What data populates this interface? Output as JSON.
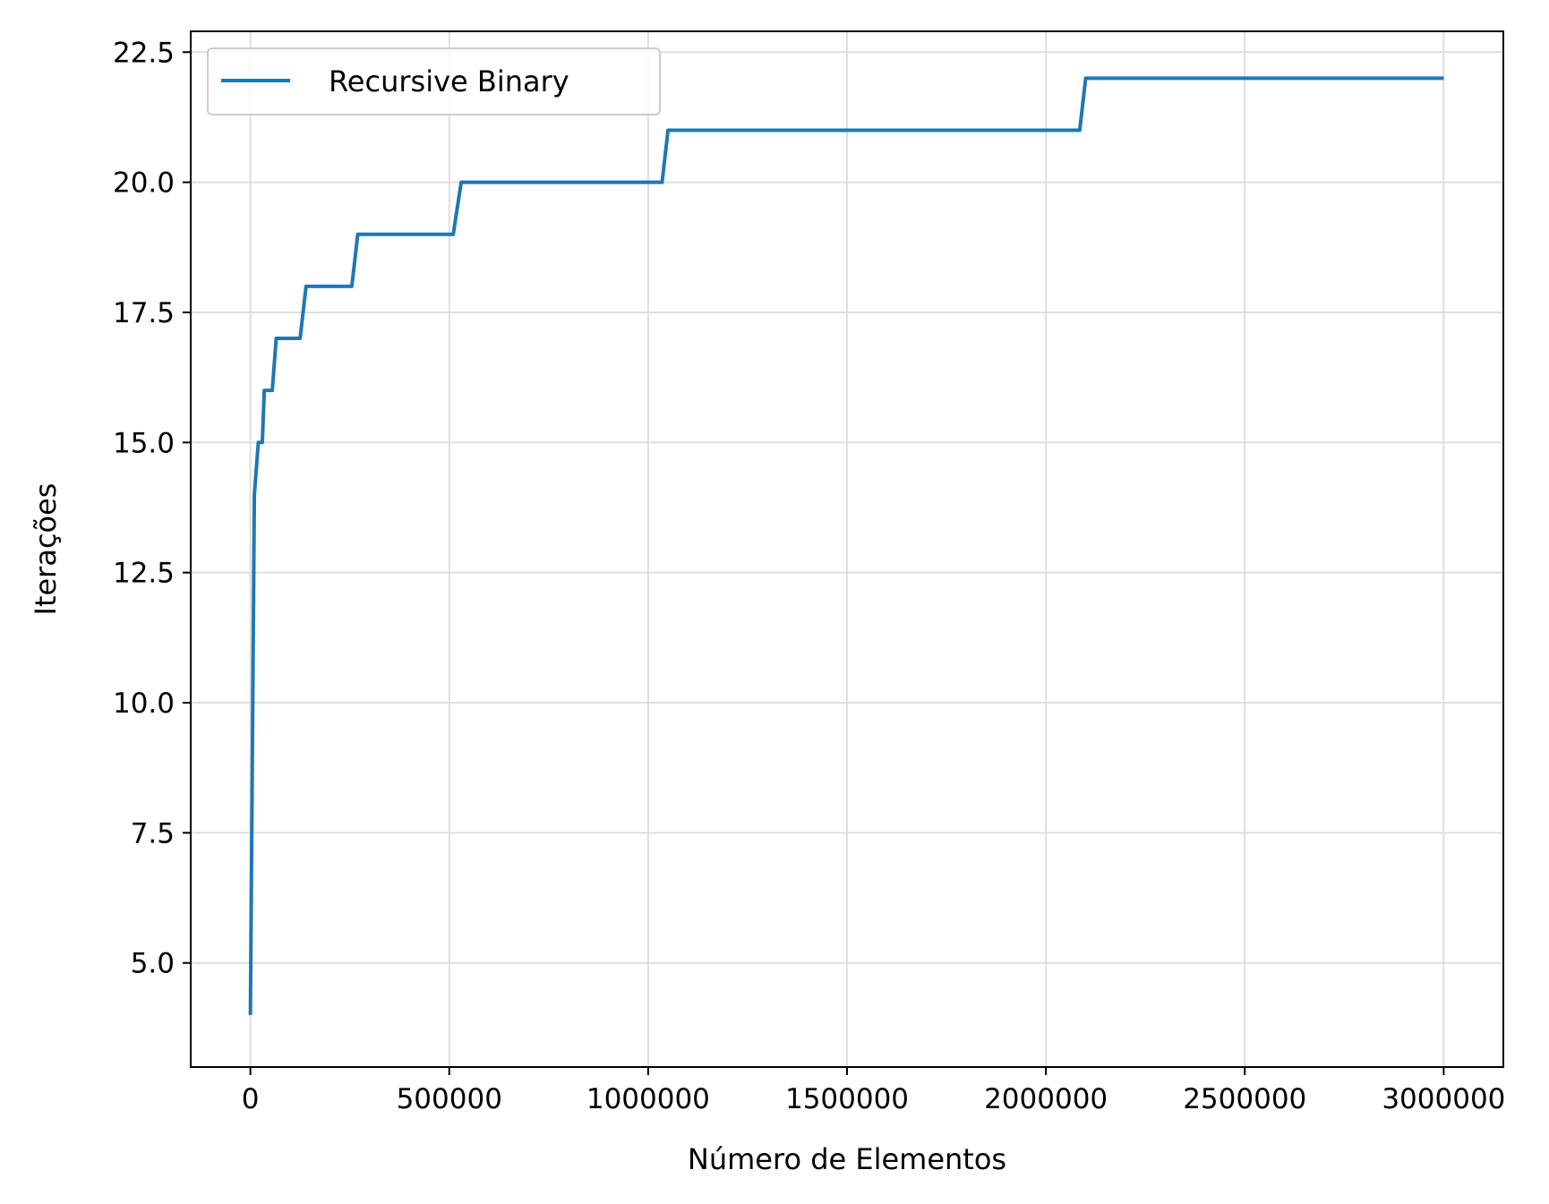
{
  "chart_data": {
    "type": "line",
    "xlabel": "Número de Elementos",
    "ylabel": "Iterações",
    "xlim": [
      -150000,
      3150000
    ],
    "ylim": [
      3.0,
      22.9
    ],
    "x_ticks": [
      0,
      500000,
      1000000,
      1500000,
      2000000,
      2500000,
      3000000
    ],
    "x_tick_labels": [
      "0",
      "500000",
      "1000000",
      "1500000",
      "2000000",
      "2500000",
      "3000000"
    ],
    "y_ticks": [
      5.0,
      7.5,
      10.0,
      12.5,
      15.0,
      17.5,
      20.0,
      22.5
    ],
    "y_tick_labels": [
      "5.0",
      "7.5",
      "10.0",
      "12.5",
      "15.0",
      "17.5",
      "20.0",
      "22.5"
    ],
    "grid": true,
    "legend_position": "top-left",
    "series": [
      {
        "name": "Recursive Binary",
        "color": "#1f77b4",
        "x": [
          0,
          10000,
          20000,
          30000,
          35000,
          55000,
          65000,
          125000,
          140000,
          255000,
          270000,
          510000,
          530000,
          1035000,
          1050000,
          2085000,
          2100000,
          3000000
        ],
        "y": [
          4,
          14,
          15,
          15,
          16,
          16,
          17,
          17,
          18,
          18,
          19,
          19,
          20,
          20,
          21,
          21,
          22,
          22
        ]
      }
    ]
  }
}
